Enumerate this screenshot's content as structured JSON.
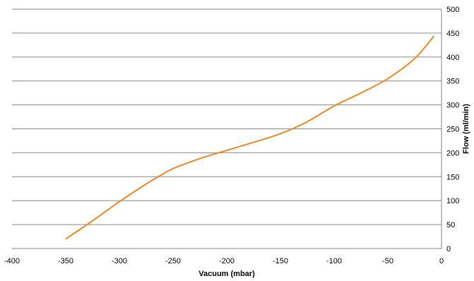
{
  "chart_data": {
    "type": "line",
    "title": "",
    "xlabel": "Vacuum (mbar)",
    "ylabel": "Flow (ml/min)",
    "xlim": [
      -400,
      0
    ],
    "ylim": [
      0,
      500
    ],
    "x_ticks": [
      -400,
      -350,
      -300,
      -250,
      -200,
      -150,
      -100,
      -50,
      0
    ],
    "y_ticks": [
      0,
      50,
      100,
      150,
      200,
      250,
      300,
      350,
      400,
      450,
      500
    ],
    "y_axis_side": "right",
    "grid": "horizontal",
    "legend": "none",
    "series": [
      {
        "color": "#E8892A",
        "x": [
          -350,
          -325,
          -300,
          -275,
          -260,
          -250,
          -225,
          -200,
          -175,
          -150,
          -125,
          -100,
          -75,
          -50,
          -25,
          -7
        ],
        "y": [
          20,
          58,
          98,
          135,
          155,
          167,
          188,
          205,
          222,
          240,
          265,
          298,
          325,
          355,
          397,
          444
        ]
      }
    ]
  }
}
